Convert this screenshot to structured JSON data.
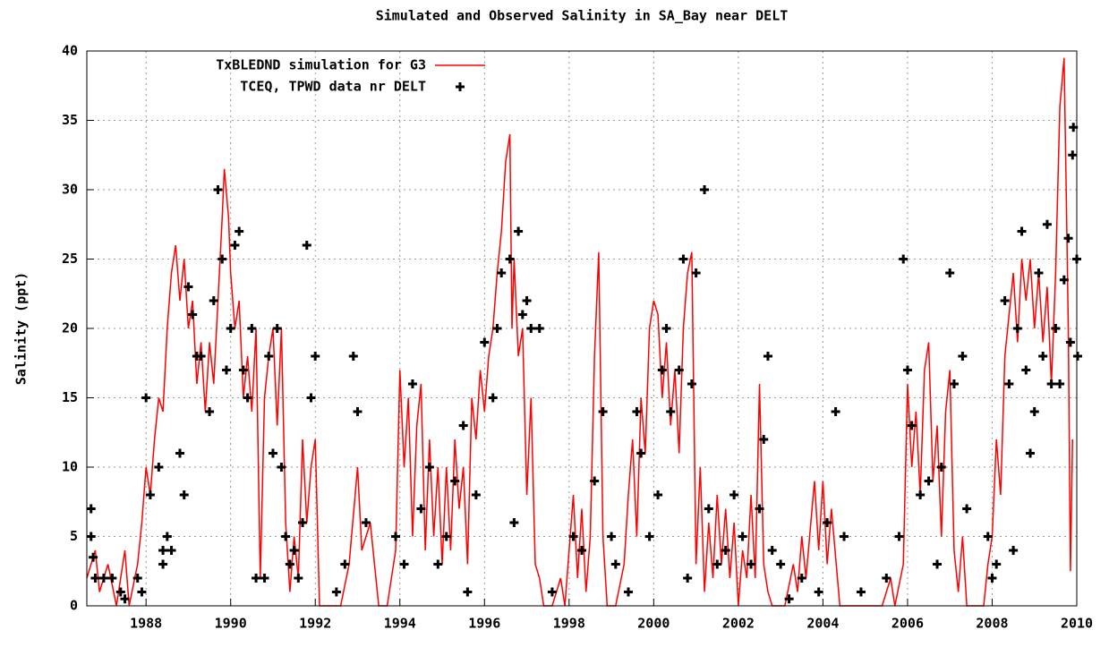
{
  "chart_data": {
    "type": "line+scatter",
    "title": "Simulated and Observed Salinity in SA_Bay near DELT",
    "y_label": "Salinity (ppt)",
    "xlim": [
      1986.6,
      2010
    ],
    "xticks": [
      1988,
      1990,
      1992,
      1994,
      1996,
      1998,
      2000,
      2002,
      2004,
      2006,
      2008,
      2010
    ],
    "ylim": [
      0,
      40
    ],
    "yticks": [
      0,
      5,
      10,
      15,
      20,
      25,
      30,
      35,
      40
    ],
    "grid": true,
    "legend": "top-left",
    "series": [
      {
        "name": "TxBLEDND simulation for G3",
        "color": "#ff0000",
        "kind": "line",
        "x": [
          1986.6,
          1986.8,
          1986.9,
          1987.1,
          1987.3,
          1987.5,
          1987.6,
          1987.8,
          1987.9,
          1988.0,
          1988.1,
          1988.2,
          1988.3,
          1988.4,
          1988.5,
          1988.6,
          1988.7,
          1988.8,
          1988.9,
          1989.0,
          1989.1,
          1989.2,
          1989.3,
          1989.4,
          1989.5,
          1989.6,
          1989.7,
          1989.8,
          1989.85,
          1989.95,
          1990.0,
          1990.1,
          1990.2,
          1990.3,
          1990.4,
          1990.5,
          1990.6,
          1990.7,
          1990.8,
          1990.9,
          1991.0,
          1991.1,
          1991.2,
          1991.3,
          1991.4,
          1991.5,
          1991.6,
          1991.7,
          1991.8,
          1991.9,
          1992.0,
          1992.1,
          1992.6,
          1992.8,
          1993.0,
          1993.1,
          1993.3,
          1993.5,
          1993.7,
          1993.9,
          1994.0,
          1994.1,
          1994.2,
          1994.3,
          1994.4,
          1994.5,
          1994.6,
          1994.7,
          1994.8,
          1994.9,
          1995.0,
          1995.1,
          1995.2,
          1995.3,
          1995.4,
          1995.5,
          1995.6,
          1995.7,
          1995.8,
          1995.9,
          1996.0,
          1996.1,
          1996.2,
          1996.3,
          1996.4,
          1996.5,
          1996.6,
          1996.65,
          1996.7,
          1996.8,
          1996.9,
          1997.0,
          1997.1,
          1997.2,
          1997.3,
          1997.4,
          1997.6,
          1997.8,
          1997.9,
          1998.0,
          1998.1,
          1998.2,
          1998.3,
          1998.4,
          1998.5,
          1998.6,
          1998.7,
          1998.8,
          1998.9,
          1999.1,
          1999.3,
          1999.4,
          1999.5,
          1999.6,
          1999.7,
          1999.8,
          1999.9,
          2000.0,
          2000.1,
          2000.2,
          2000.3,
          2000.4,
          2000.5,
          2000.6,
          2000.7,
          2000.8,
          2000.9,
          2001.0,
          2001.1,
          2001.2,
          2001.3,
          2001.4,
          2001.5,
          2001.6,
          2001.7,
          2001.8,
          2001.9,
          2002.0,
          2002.1,
          2002.2,
          2002.3,
          2002.4,
          2002.5,
          2002.6,
          2002.7,
          2002.8,
          2003.1,
          2003.3,
          2003.4,
          2003.5,
          2003.6,
          2003.8,
          2003.9,
          2004.0,
          2004.1,
          2004.2,
          2004.4,
          2005.4,
          2005.6,
          2005.7,
          2005.9,
          2006.0,
          2006.1,
          2006.2,
          2006.3,
          2006.4,
          2006.5,
          2006.6,
          2006.7,
          2006.8,
          2006.9,
          2007.0,
          2007.1,
          2007.2,
          2007.3,
          2007.4,
          2007.8,
          2007.9,
          2008.0,
          2008.1,
          2008.2,
          2008.3,
          2008.4,
          2008.5,
          2008.6,
          2008.7,
          2008.8,
          2008.9,
          2009.0,
          2009.1,
          2009.2,
          2009.3,
          2009.4,
          2009.5,
          2009.6,
          2009.7,
          2009.75,
          2009.8,
          2009.85,
          2009.9
        ],
        "values": [
          2,
          4,
          1,
          3,
          0,
          4,
          0,
          3,
          6,
          10,
          8,
          12,
          15,
          14,
          20,
          24,
          26,
          22,
          25,
          20,
          22,
          16,
          19,
          14,
          19,
          16,
          22,
          28,
          31.5,
          28,
          24,
          20,
          22,
          15,
          18,
          14,
          20,
          2,
          15,
          18,
          20,
          13,
          20,
          6,
          1,
          5,
          2,
          12,
          6,
          10,
          12,
          0,
          0,
          3,
          10,
          4,
          6,
          0,
          0,
          4,
          17,
          10,
          15,
          5,
          13,
          16,
          4,
          12,
          5,
          10,
          3,
          10,
          4,
          12,
          7,
          10,
          3,
          15,
          12,
          17,
          14,
          18,
          20,
          24,
          27,
          32,
          34,
          20,
          25,
          18,
          20,
          8,
          15,
          3,
          2,
          0,
          0,
          2,
          0,
          4,
          8,
          2,
          7,
          1,
          5,
          18,
          25.5,
          5,
          0,
          0,
          3,
          8,
          12,
          5,
          15,
          11,
          20,
          22,
          21,
          15,
          19,
          13,
          17,
          11,
          20,
          24,
          25.5,
          3,
          10,
          1,
          6,
          2,
          8,
          3,
          7,
          2,
          6,
          0,
          4,
          2,
          8,
          2,
          16,
          3,
          1,
          0,
          0,
          3,
          1,
          5,
          2,
          9,
          4,
          9,
          3,
          7,
          0,
          0,
          2,
          0,
          3,
          16,
          10,
          14,
          8,
          17,
          19,
          9,
          13,
          5,
          14,
          17,
          4,
          1,
          5,
          0,
          0,
          3,
          5,
          12,
          8,
          18,
          21,
          24,
          19,
          25,
          22,
          25,
          20,
          24,
          19,
          23,
          16,
          24,
          36,
          39.5,
          30,
          20,
          2.5,
          12
        ]
      },
      {
        "name": "TCEQ, TPWD data nr DELT",
        "color": "#000000",
        "kind": "scatter",
        "x": [
          1986.7,
          1986.7,
          1986.75,
          1986.8,
          1987.0,
          1987.2,
          1987.4,
          1987.5,
          1987.8,
          1987.9,
          1988.0,
          1988.1,
          1988.3,
          1988.4,
          1988.4,
          1988.5,
          1988.6,
          1988.8,
          1988.9,
          1989.0,
          1989.1,
          1989.2,
          1989.3,
          1989.5,
          1989.6,
          1989.7,
          1989.8,
          1989.9,
          1990.0,
          1990.1,
          1990.2,
          1990.3,
          1990.4,
          1990.5,
          1990.6,
          1990.8,
          1990.9,
          1991.0,
          1991.1,
          1991.2,
          1991.3,
          1991.4,
          1991.5,
          1991.6,
          1991.7,
          1991.8,
          1991.9,
          1992.0,
          1992.5,
          1992.7,
          1992.9,
          1993.0,
          1993.2,
          1993.9,
          1994.1,
          1994.3,
          1994.5,
          1994.7,
          1994.9,
          1995.1,
          1995.3,
          1995.5,
          1995.6,
          1995.8,
          1996.0,
          1996.2,
          1996.3,
          1996.4,
          1996.6,
          1996.7,
          1996.8,
          1996.9,
          1997.0,
          1997.1,
          1997.3,
          1997.6,
          1998.1,
          1998.3,
          1998.6,
          1998.8,
          1999.0,
          1999.1,
          1999.4,
          1999.6,
          1999.7,
          1999.9,
          2000.1,
          2000.2,
          2000.3,
          2000.4,
          2000.6,
          2000.7,
          2000.8,
          2000.9,
          2001.0,
          2001.2,
          2001.3,
          2001.5,
          2001.7,
          2001.9,
          2002.1,
          2002.3,
          2002.5,
          2002.6,
          2002.7,
          2002.8,
          2003.0,
          2003.2,
          2003.5,
          2003.9,
          2004.1,
          2004.3,
          2004.5,
          2004.9,
          2005.5,
          2005.8,
          2005.9,
          2006.0,
          2006.1,
          2006.3,
          2006.5,
          2006.7,
          2006.8,
          2007.0,
          2007.1,
          2007.3,
          2007.4,
          2007.9,
          2008.0,
          2008.1,
          2008.3,
          2008.4,
          2008.5,
          2008.6,
          2008.7,
          2008.8,
          2008.9,
          2009.0,
          2009.1,
          2009.2,
          2009.3,
          2009.4,
          2009.5,
          2009.6,
          2009.7,
          2009.8,
          2009.85,
          2009.9,
          2009.92,
          2010.0,
          2010.02
        ],
        "values": [
          7,
          5,
          3.5,
          2,
          2,
          2,
          1,
          0.5,
          2,
          1,
          15,
          8,
          10,
          3,
          4,
          5,
          4,
          11,
          8,
          23,
          21,
          18,
          18,
          14,
          22,
          30,
          25,
          17,
          20,
          26,
          27,
          17,
          15,
          20,
          2,
          2,
          18,
          11,
          20,
          10,
          5,
          3,
          4,
          2,
          6,
          26,
          15,
          18,
          1,
          3,
          18,
          14,
          6,
          5,
          3,
          16,
          7,
          10,
          3,
          5,
          9,
          13,
          1,
          8,
          19,
          15,
          20,
          24,
          25,
          6,
          27,
          21,
          22,
          20,
          20,
          1,
          5,
          4,
          9,
          14,
          5,
          3,
          1,
          14,
          11,
          5,
          8,
          17,
          20,
          14,
          17,
          25,
          2,
          16,
          24,
          30,
          7,
          3,
          4,
          8,
          5,
          3,
          7,
          12,
          18,
          4,
          3,
          0.5,
          2,
          1,
          6,
          14,
          5,
          1,
          2,
          5,
          25,
          17,
          13,
          8,
          9,
          3,
          10,
          24,
          16,
          18,
          7,
          5,
          2,
          3,
          22,
          16,
          4,
          20,
          27,
          17,
          11,
          14,
          24,
          18,
          27.5,
          16,
          20,
          16,
          23.5,
          26.5,
          19,
          32.5,
          34.5,
          25,
          18
        ]
      }
    ]
  }
}
